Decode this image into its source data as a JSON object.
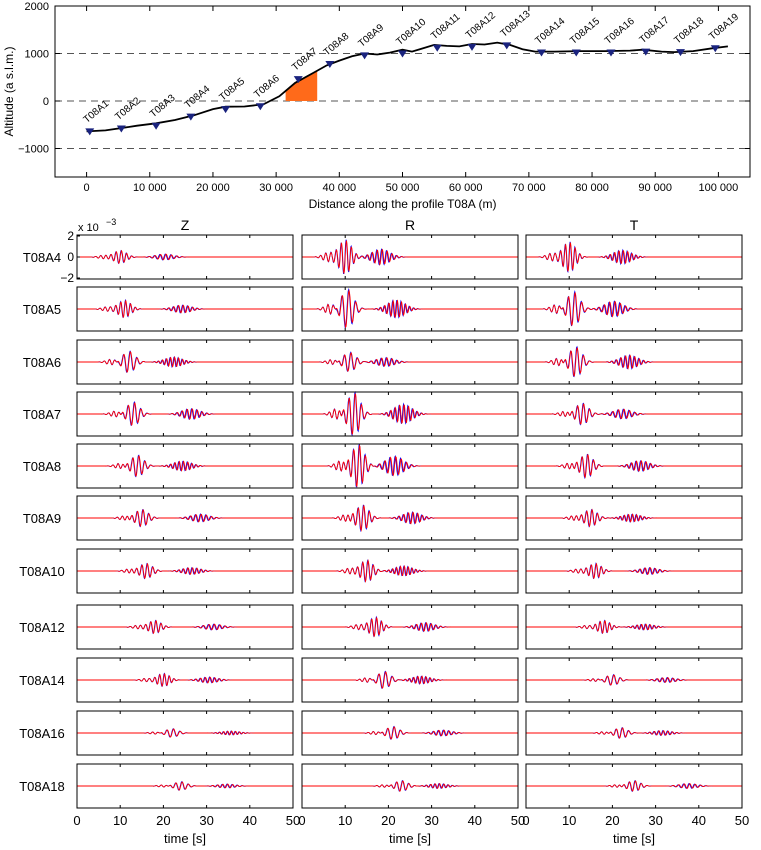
{
  "chart_data": [
    {
      "type": "line",
      "xlabel": "Distance along the profile T08A (m)",
      "ylabel": "Altitude (a s.l.m.)",
      "xlim": [
        -5000,
        105000
      ],
      "ylim": [
        -1600,
        2000
      ],
      "xticks": [
        0,
        10000,
        20000,
        30000,
        40000,
        50000,
        60000,
        70000,
        80000,
        90000,
        100000
      ],
      "xtick_labels": [
        "0",
        "10 000",
        "20 000",
        "30 000",
        "40 000",
        "50 000",
        "60 000",
        "70 000",
        "80 000",
        "90 000",
        "100 000"
      ],
      "yticks": [
        -1000,
        0,
        1000,
        2000
      ],
      "ytick_labels": [
        "−1000",
        "0",
        "1000",
        "2000"
      ],
      "dashed_gridlines_y": [
        -1000,
        0,
        1000
      ],
      "topography": {
        "x": [
          0,
          3000,
          6000,
          8000,
          11000,
          14000,
          17000,
          20000,
          22000,
          25000,
          28000,
          30500,
          33000,
          36000,
          38000,
          40000,
          42000,
          44000,
          46000,
          48000,
          50000,
          51500,
          53000,
          55000,
          57000,
          59000,
          61000,
          63000,
          65000,
          67000,
          69000,
          71000,
          74000,
          78000,
          82000,
          86000,
          88000,
          91000,
          93000,
          96000,
          99000,
          101500
        ],
        "y": [
          -640,
          -620,
          -560,
          -520,
          -470,
          -400,
          -300,
          -170,
          -120,
          -115,
          -70,
          100,
          380,
          600,
          750,
          850,
          940,
          1000,
          980,
          1020,
          1080,
          1040,
          1100,
          1180,
          1160,
          1150,
          1200,
          1190,
          1230,
          1180,
          1090,
          1040,
          1040,
          1050,
          1050,
          1060,
          1080,
          1040,
          1030,
          1050,
          1110,
          1150
        ]
      },
      "stations": [
        {
          "name": "T08A1",
          "x": 500,
          "elev": -640
        },
        {
          "name": "T08A2",
          "x": 5500,
          "elev": -580
        },
        {
          "name": "T08A3",
          "x": 11000,
          "elev": -520
        },
        {
          "name": "T08A4",
          "x": 16500,
          "elev": -330
        },
        {
          "name": "T08A5",
          "x": 22000,
          "elev": -170
        },
        {
          "name": "T08A6",
          "x": 27500,
          "elev": -110
        },
        {
          "name": "T08A7",
          "x": 33500,
          "elev": 460
        },
        {
          "name": "T08A8",
          "x": 38500,
          "elev": 780
        },
        {
          "name": "T08A9",
          "x": 44000,
          "elev": 960
        },
        {
          "name": "T08A10",
          "x": 50000,
          "elev": 1000
        },
        {
          "name": "T08A11",
          "x": 55500,
          "elev": 1120
        },
        {
          "name": "T08A12",
          "x": 61000,
          "elev": 1140
        },
        {
          "name": "T08A13",
          "x": 66500,
          "elev": 1170
        },
        {
          "name": "T08A14",
          "x": 72000,
          "elev": 1020
        },
        {
          "name": "T08A15",
          "x": 77500,
          "elev": 1020
        },
        {
          "name": "T08A16",
          "x": 83000,
          "elev": 1020
        },
        {
          "name": "T08A17",
          "x": 88500,
          "elev": 1040
        },
        {
          "name": "T08A18",
          "x": 94000,
          "elev": 1030
        },
        {
          "name": "T08A19",
          "x": 99500,
          "elev": 1110
        }
      ],
      "shaded_region": {
        "x_start": 31500,
        "x_end": 36500,
        "color": "#ff6a1a"
      },
      "colors": {
        "profile": "#000000",
        "station_marker": "#1a237e",
        "gridline": "#555555"
      }
    },
    {
      "type": "line",
      "columns": [
        "Z",
        "R",
        "T"
      ],
      "rows": [
        "T08A4",
        "T08A5",
        "T08A6",
        "T08A7",
        "T08A8",
        "T08A9",
        "T08A10",
        "T08A12",
        "T08A14",
        "T08A16",
        "T08A18"
      ],
      "xlabel": "time [s]",
      "xlim": [
        0,
        50
      ],
      "xticks": [
        0,
        10,
        20,
        30,
        40,
        50
      ],
      "ylim": [
        -0.002,
        0.002
      ],
      "yticks_first_panel": [
        "2",
        "0",
        "−2"
      ],
      "y_multiplier": "x 10",
      "y_multiplier_exponent": "−3",
      "series": [
        {
          "name": "",
          "color": "#0000ff"
        },
        {
          "name": "",
          "color": "#ff0000"
        }
      ],
      "arrival_times_s": {
        "Z": [
          10,
          11,
          12,
          13,
          14,
          15,
          16,
          18,
          20,
          22,
          24
        ],
        "R": [
          10,
          10.5,
          11,
          12,
          13,
          14,
          15,
          17,
          19,
          21,
          23
        ],
        "T": [
          10,
          11,
          11.5,
          13,
          14,
          15,
          16,
          18,
          20,
          22,
          25
        ]
      },
      "peak_amplitude_e3": {
        "Z": [
          0.6,
          0.8,
          1.0,
          1.1,
          1.0,
          0.8,
          0.7,
          0.6,
          0.6,
          0.4,
          0.4
        ],
        "R": [
          1.6,
          1.8,
          0.9,
          2.0,
          2.0,
          1.2,
          1.0,
          0.9,
          0.8,
          0.6,
          0.5
        ],
        "T": [
          1.4,
          1.6,
          1.4,
          1.0,
          1.1,
          0.8,
          0.7,
          0.6,
          0.5,
          0.5,
          0.5
        ]
      }
    }
  ]
}
